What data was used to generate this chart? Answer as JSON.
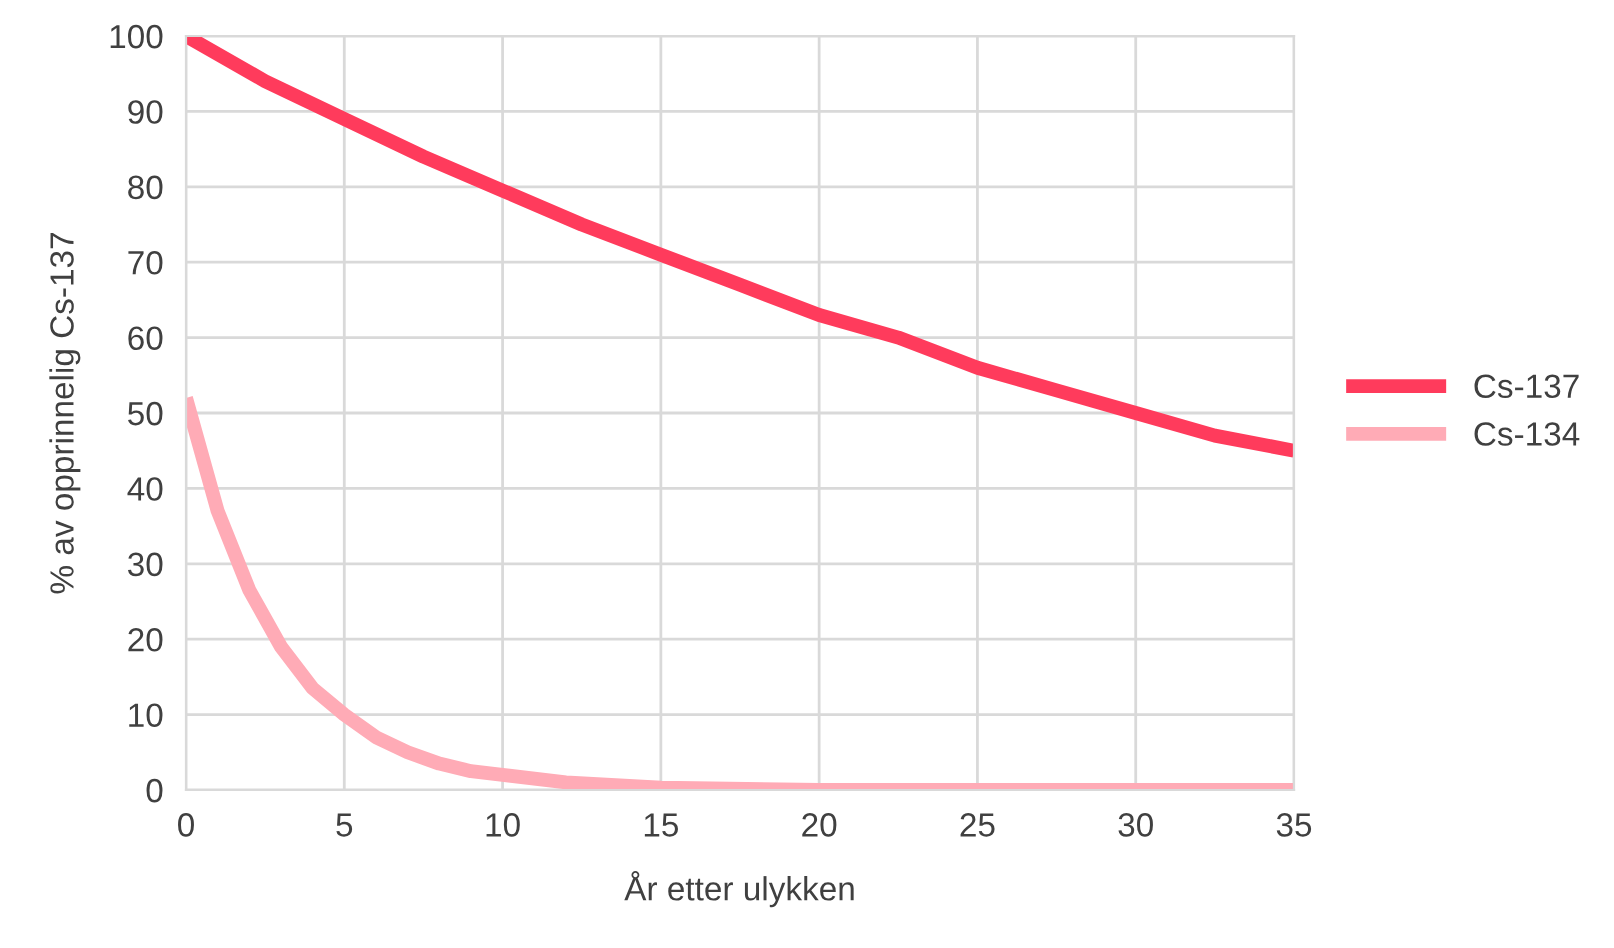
{
  "chart_data": {
    "type": "line",
    "xlabel": "År etter ulykken",
    "ylabel": "% av opprinnelig Cs-137",
    "xlim": [
      0,
      35
    ],
    "xticks": [
      0,
      5,
      10,
      15,
      20,
      25,
      30,
      35
    ],
    "ylim": [
      0,
      100
    ],
    "yticks": [
      0,
      10,
      20,
      30,
      40,
      50,
      60,
      70,
      80,
      90,
      100
    ],
    "grid": true,
    "legend": "right",
    "marker": "none",
    "line_style": "solid",
    "series": [
      {
        "name": "Cs-137",
        "color": "#ff3b5c",
        "x": [
          0,
          2.5,
          5,
          7.5,
          10,
          12.5,
          15,
          17.5,
          20,
          22.5,
          25,
          27.5,
          30,
          32.5,
          35
        ],
        "values": [
          100,
          94,
          89,
          84,
          79.5,
          75,
          71,
          67,
          63,
          60,
          56,
          53,
          50,
          47,
          45
        ]
      },
      {
        "name": "Cs-134",
        "color": "#ffabb6",
        "x": [
          0,
          1,
          2,
          3,
          4,
          5,
          6,
          7,
          8,
          9,
          10,
          12,
          15,
          20,
          25,
          30,
          35
        ],
        "values": [
          52,
          37,
          26.5,
          19,
          13.5,
          10,
          7,
          5,
          3.5,
          2.5,
          2,
          1,
          0.3,
          0,
          0,
          0,
          0
        ]
      }
    ]
  }
}
